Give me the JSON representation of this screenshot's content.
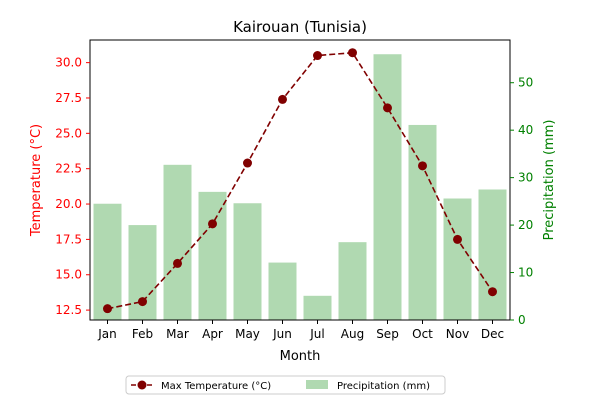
{
  "chart_data": {
    "type": "bar",
    "title": "Kairouan (Tunisia)",
    "xlabel": "Month",
    "categories": [
      "Jan",
      "Feb",
      "Mar",
      "Apr",
      "May",
      "Jun",
      "Jul",
      "Aug",
      "Sep",
      "Oct",
      "Nov",
      "Dec"
    ],
    "left_axis": {
      "label": "Temperature (°C)",
      "ylim": [
        11.8,
        31.6
      ],
      "ticks": [
        "12.5",
        "15.0",
        "17.5",
        "20.0",
        "22.5",
        "25.0",
        "27.5",
        "30.0"
      ],
      "color": "#ff0000"
    },
    "right_axis": {
      "label": "Precipitation (mm)",
      "ylim": [
        0,
        59
      ],
      "ticks": [
        "0",
        "10",
        "20",
        "30",
        "40",
        "50"
      ],
      "color": "#008000"
    },
    "series": [
      {
        "name": "Max Temperature (°C)",
        "type": "line",
        "axis": "left",
        "color": "#800000",
        "line_style": "dashed",
        "marker": "circle",
        "values": [
          12.6,
          13.1,
          15.8,
          18.6,
          22.9,
          27.4,
          30.5,
          30.7,
          26.8,
          22.7,
          17.5,
          13.8
        ]
      },
      {
        "name": "Precipitation (mm)",
        "type": "bar",
        "axis": "right",
        "color": "#b0d9b1",
        "values": [
          24.5,
          20.0,
          32.7,
          27.0,
          24.6,
          12.1,
          5.1,
          16.4,
          56.0,
          41.1,
          25.6,
          27.5
        ]
      }
    ],
    "legend": "bottom-center",
    "grid": false
  }
}
